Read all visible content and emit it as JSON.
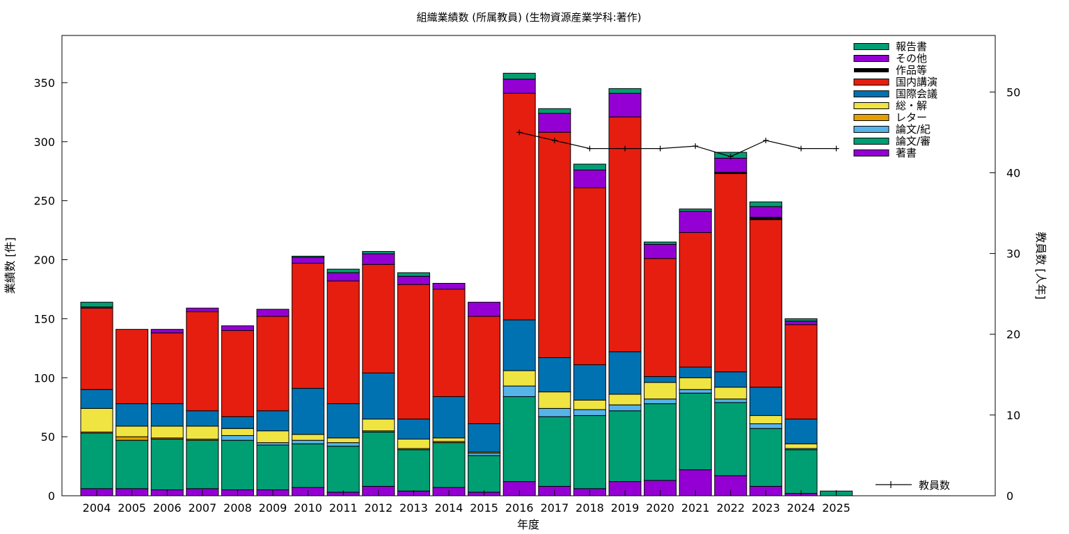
{
  "chart_data": {
    "type": "bar",
    "title": "組織業績数 (所属教員) (生物資源産業学科:著作)",
    "xlabel": "年度",
    "ylabel": "業績数 [件]",
    "y2label": "教員数 [人年]",
    "ylim": [
      0,
      390
    ],
    "y2lim": [
      0,
      57
    ],
    "yticks": [
      0,
      50,
      100,
      150,
      200,
      250,
      300,
      350
    ],
    "y2ticks": [
      0,
      10,
      20,
      30,
      40,
      50
    ],
    "stacked": true,
    "legend_position": "top-right",
    "categories": [
      "2004",
      "2005",
      "2006",
      "2007",
      "2008",
      "2009",
      "2010",
      "2011",
      "2012",
      "2013",
      "2014",
      "2015",
      "2016",
      "2017",
      "2018",
      "2019",
      "2020",
      "2021",
      "2022",
      "2023",
      "2024",
      "2025"
    ],
    "series": [
      {
        "name": "著書",
        "color": "#9400d3",
        "values": [
          6,
          6,
          5,
          6,
          5,
          5,
          7,
          3,
          8,
          4,
          7,
          3,
          12,
          8,
          6,
          12,
          13,
          22,
          17,
          8,
          2,
          0
        ]
      },
      {
        "name": "論文/審",
        "color": "#009e73",
        "values": [
          47,
          41,
          43,
          41,
          42,
          38,
          37,
          39,
          46,
          35,
          38,
          31,
          72,
          59,
          62,
          60,
          65,
          65,
          62,
          49,
          37,
          4
        ]
      },
      {
        "name": "論文/紀",
        "color": "#56b4e9",
        "values": [
          0,
          0,
          0,
          0,
          4,
          2,
          3,
          3,
          0,
          0,
          0,
          2,
          9,
          7,
          5,
          5,
          4,
          3,
          3,
          4,
          1,
          0
        ]
      },
      {
        "name": "レター",
        "color": "#e69f00",
        "values": [
          1,
          3,
          1,
          1,
          0,
          0,
          0,
          0,
          1,
          1,
          1,
          0,
          0,
          0,
          0,
          0,
          0,
          0,
          0,
          0,
          0,
          0
        ]
      },
      {
        "name": "総・解",
        "color": "#f0e442",
        "values": [
          20,
          9,
          10,
          11,
          6,
          10,
          5,
          4,
          10,
          8,
          3,
          1,
          13,
          14,
          8,
          9,
          14,
          10,
          10,
          7,
          4,
          0
        ]
      },
      {
        "name": "国際会議",
        "color": "#0072b2",
        "values": [
          16,
          19,
          19,
          13,
          10,
          17,
          39,
          29,
          39,
          17,
          35,
          24,
          43,
          29,
          30,
          36,
          5,
          9,
          13,
          24,
          21,
          0
        ]
      },
      {
        "name": "国内講演",
        "color": "#e51e10",
        "values": [
          69,
          63,
          60,
          84,
          73,
          80,
          106,
          104,
          92,
          114,
          91,
          91,
          192,
          191,
          150,
          199,
          100,
          114,
          168,
          142,
          80,
          0
        ]
      },
      {
        "name": "作品等",
        "color": "#000000",
        "values": [
          0,
          0,
          0,
          0,
          0,
          0,
          0,
          0,
          0,
          0,
          0,
          0,
          0,
          0,
          0,
          0,
          0,
          0,
          1,
          2,
          0,
          0
        ]
      },
      {
        "name": "その他",
        "color": "#9400d3",
        "values": [
          1,
          0,
          3,
          3,
          4,
          6,
          5,
          7,
          9,
          7,
          5,
          12,
          12,
          16,
          15,
          20,
          12,
          18,
          12,
          9,
          3,
          0
        ]
      },
      {
        "name": "報告書",
        "color": "#009e73",
        "values": [
          4,
          0,
          0,
          0,
          0,
          0,
          1,
          3,
          2,
          3,
          0,
          0,
          5,
          4,
          5,
          4,
          2,
          2,
          5,
          4,
          2,
          0
        ]
      }
    ],
    "line": {
      "name": "教員数",
      "axis": "right",
      "color": "#000000",
      "categories": [
        "2016",
        "2017",
        "2018",
        "2019",
        "2020",
        "2021",
        "2022",
        "2023",
        "2024",
        "2025"
      ],
      "values": [
        45,
        44,
        43,
        43,
        43,
        43.3,
        42,
        44,
        43,
        43
      ]
    }
  }
}
